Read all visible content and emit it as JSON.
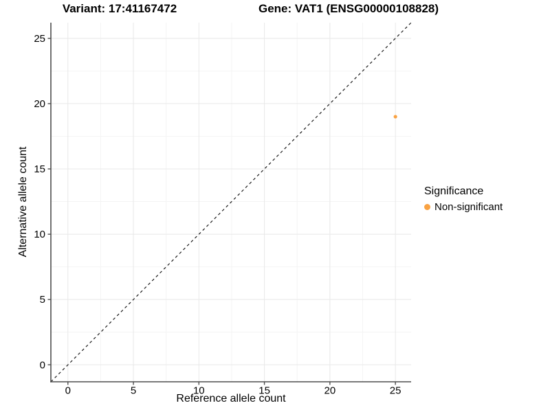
{
  "chart_data": {
    "type": "scatter",
    "title_variant": "Variant: 17:41167472",
    "title_gene": "Gene: VAT1 (ENSG00000108828)",
    "xlabel": "Reference allele count",
    "ylabel": "Alternative allele count",
    "x_ticks": [
      0,
      5,
      10,
      15,
      20,
      25
    ],
    "y_ticks": [
      0,
      5,
      10,
      15,
      20,
      25
    ],
    "xlim": [
      -1.3,
      26.2
    ],
    "ylim": [
      -1.3,
      26.2
    ],
    "grid": "major+minor",
    "points": [
      {
        "x": 25,
        "y": 19,
        "series": "Non-significant"
      }
    ],
    "identity_line": {
      "style": "dashed",
      "slope": 1,
      "intercept": 0
    },
    "legend": {
      "position": "right",
      "title": "Significance",
      "entries": [
        {
          "label": "Non-significant",
          "color": "#F9A242"
        }
      ]
    },
    "colors": {
      "point": "#F9A242",
      "axis_line": "#4D4D4D",
      "tick_mark": "#4D4D4D",
      "grid_major": "#E8E8E8",
      "grid_minor": "#F4F4F4",
      "identity_line": "#1A1A1A",
      "background": "#FFFFFF",
      "text": "#000000"
    }
  }
}
